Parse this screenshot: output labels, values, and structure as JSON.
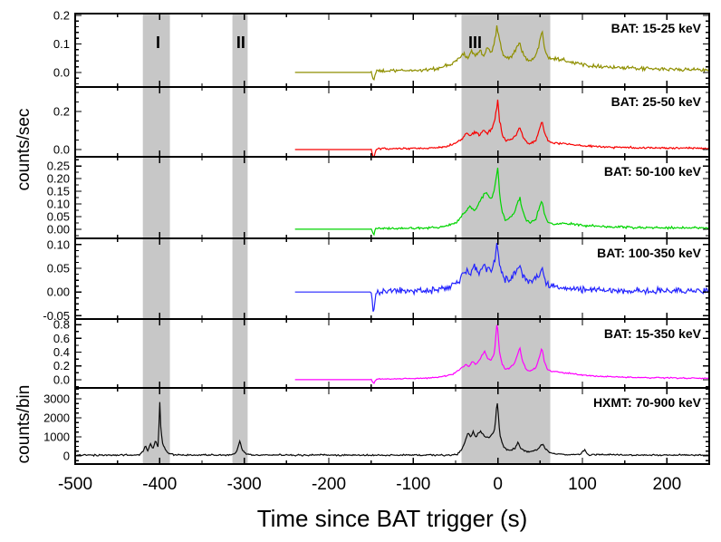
{
  "chart_data": {
    "type": "line",
    "title": "",
    "xlabel": "Time since BAT trigger (s)",
    "ylabel_top": "counts/sec",
    "ylabel_bottom": "counts/bin",
    "x_range": [
      -500,
      250
    ],
    "x_major_ticks": [
      -500,
      -400,
      -300,
      -200,
      -100,
      0,
      100,
      200
    ],
    "x_minor_step": 50,
    "band_color": "#c7c7c7",
    "interval_label_color": "#0000ee",
    "frame_color": "#000000",
    "shaded_intervals": [
      {
        "label": "I",
        "x0": -420,
        "x1": -388,
        "label_t": -402
      },
      {
        "label": "II",
        "x0": -314,
        "x1": -296,
        "label_t": -304
      },
      {
        "label": "III",
        "x0": -43,
        "x1": 62,
        "label_t": -27
      }
    ],
    "panels": [
      {
        "id": "bat-15-25",
        "legend": "BAT: 15-25 keV",
        "color": "#8f8f00",
        "ylim": [
          -0.051,
          0.206
        ],
        "yticks": [
          0.0,
          0.1,
          0.2
        ],
        "ytick_labels": [
          "0.0",
          "0.1",
          "0.2"
        ],
        "yminor_step": 0.02,
        "x_start": -240,
        "noise_start": -150,
        "noise": 0.008,
        "peak": 0.165,
        "keypoints": [
          [
            -150,
            0.004
          ],
          [
            -147,
            -0.028
          ],
          [
            -144,
            0.004
          ],
          [
            -120,
            0.006
          ],
          [
            -90,
            0.008
          ],
          [
            -70,
            0.014
          ],
          [
            -55,
            0.028
          ],
          [
            -46,
            0.05
          ],
          [
            -40,
            0.065
          ],
          [
            -36,
            0.05
          ],
          [
            -31,
            0.075
          ],
          [
            -27,
            0.055
          ],
          [
            -22,
            0.08
          ],
          [
            -17,
            0.06
          ],
          [
            -12,
            0.085
          ],
          [
            -8,
            0.07
          ],
          [
            -4,
            0.1
          ],
          [
            -1,
            0.165
          ],
          [
            2,
            0.11
          ],
          [
            5,
            0.07
          ],
          [
            9,
            0.05
          ],
          [
            14,
            0.055
          ],
          [
            19,
            0.07
          ],
          [
            23,
            0.09
          ],
          [
            26,
            0.105
          ],
          [
            29,
            0.07
          ],
          [
            33,
            0.05
          ],
          [
            38,
            0.04
          ],
          [
            44,
            0.05
          ],
          [
            49,
            0.1
          ],
          [
            52,
            0.155
          ],
          [
            55,
            0.095
          ],
          [
            59,
            0.055
          ],
          [
            64,
            0.05
          ],
          [
            72,
            0.048
          ],
          [
            82,
            0.042
          ],
          [
            93,
            0.032
          ],
          [
            106,
            0.026
          ],
          [
            126,
            0.02
          ],
          [
            152,
            0.015
          ],
          [
            186,
            0.012
          ],
          [
            220,
            0.01
          ],
          [
            250,
            0.009
          ]
        ]
      },
      {
        "id": "bat-25-50",
        "legend": "BAT: 25-50 keV",
        "color": "#f80000",
        "ylim": [
          -0.038,
          0.328
        ],
        "yticks": [
          0.0,
          0.2
        ],
        "ytick_labels": [
          "0.0",
          "0.2"
        ],
        "yminor_step": 0.05,
        "x_start": -240,
        "noise_start": -150,
        "noise": 0.0075,
        "peak": 0.26,
        "keypoints": [
          [
            -150,
            0.003
          ],
          [
            -147,
            -0.05
          ],
          [
            -144,
            0.003
          ],
          [
            -120,
            0.004
          ],
          [
            -90,
            0.006
          ],
          [
            -65,
            0.012
          ],
          [
            -50,
            0.03
          ],
          [
            -42,
            0.06
          ],
          [
            -37,
            0.09
          ],
          [
            -32,
            0.07
          ],
          [
            -27,
            0.095
          ],
          [
            -22,
            0.075
          ],
          [
            -17,
            0.1
          ],
          [
            -12,
            0.085
          ],
          [
            -7,
            0.11
          ],
          [
            -3,
            0.17
          ],
          [
            0,
            0.26
          ],
          [
            2,
            0.15
          ],
          [
            5,
            0.08
          ],
          [
            9,
            0.045
          ],
          [
            14,
            0.05
          ],
          [
            19,
            0.065
          ],
          [
            23,
            0.09
          ],
          [
            26,
            0.115
          ],
          [
            29,
            0.075
          ],
          [
            33,
            0.04
          ],
          [
            38,
            0.03
          ],
          [
            45,
            0.05
          ],
          [
            49,
            0.1
          ],
          [
            52,
            0.155
          ],
          [
            55,
            0.09
          ],
          [
            59,
            0.045
          ],
          [
            65,
            0.035
          ],
          [
            73,
            0.032
          ],
          [
            86,
            0.028
          ],
          [
            101,
            0.02
          ],
          [
            126,
            0.014
          ],
          [
            160,
            0.01
          ],
          [
            200,
            0.008
          ],
          [
            250,
            0.006
          ]
        ]
      },
      {
        "id": "bat-50-100",
        "legend": "BAT: 50-100 keV",
        "color": "#00d400",
        "ylim": [
          -0.036,
          0.286
        ],
        "yticks": [
          0.0,
          0.05,
          0.1,
          0.15,
          0.2,
          0.25
        ],
        "ytick_labels": [
          "0.00",
          "0.05",
          "0.10",
          "0.15",
          "0.20",
          "0.25"
        ],
        "yminor_step": 0.025,
        "x_start": -240,
        "noise_start": -150,
        "noise": 0.0065,
        "peak": 0.243,
        "keypoints": [
          [
            -150,
            0.002
          ],
          [
            -147,
            -0.02
          ],
          [
            -144,
            0.002
          ],
          [
            -110,
            0.004
          ],
          [
            -80,
            0.006
          ],
          [
            -60,
            0.012
          ],
          [
            -50,
            0.025
          ],
          [
            -43,
            0.05
          ],
          [
            -38,
            0.075
          ],
          [
            -33,
            0.09
          ],
          [
            -28,
            0.07
          ],
          [
            -23,
            0.1
          ],
          [
            -18,
            0.13
          ],
          [
            -14,
            0.155
          ],
          [
            -10,
            0.12
          ],
          [
            -6,
            0.13
          ],
          [
            -2,
            0.2
          ],
          [
            0,
            0.243
          ],
          [
            2,
            0.14
          ],
          [
            5,
            0.07
          ],
          [
            9,
            0.035
          ],
          [
            14,
            0.045
          ],
          [
            19,
            0.06
          ],
          [
            23,
            0.1
          ],
          [
            26,
            0.13
          ],
          [
            29,
            0.075
          ],
          [
            33,
            0.035
          ],
          [
            38,
            0.025
          ],
          [
            45,
            0.04
          ],
          [
            49,
            0.085
          ],
          [
            52,
            0.115
          ],
          [
            55,
            0.06
          ],
          [
            59,
            0.025
          ],
          [
            66,
            0.02
          ],
          [
            76,
            0.025
          ],
          [
            91,
            0.018
          ],
          [
            111,
            0.012
          ],
          [
            141,
            0.008
          ],
          [
            181,
            0.006
          ],
          [
            250,
            0.005
          ]
        ]
      },
      {
        "id": "bat-100-350",
        "legend": "BAT: 100-350 keV",
        "color": "#2424ff",
        "ylim": [
          -0.057,
          0.113
        ],
        "yticks": [
          -0.05,
          0.0,
          0.05,
          0.1
        ],
        "ytick_labels": [
          "-0.05",
          "0.00",
          "0.05",
          "0.10"
        ],
        "yminor_step": 0.0125,
        "x_start": -240,
        "noise_start": -150,
        "noise": 0.0095,
        "peak": 0.1,
        "keypoints": [
          [
            -150,
            0.001
          ],
          [
            -147,
            -0.042
          ],
          [
            -144,
            0.001
          ],
          [
            -110,
            0.002
          ],
          [
            -80,
            0.004
          ],
          [
            -60,
            0.008
          ],
          [
            -50,
            0.015
          ],
          [
            -43,
            0.03
          ],
          [
            -38,
            0.045
          ],
          [
            -33,
            0.035
          ],
          [
            -28,
            0.05
          ],
          [
            -23,
            0.04
          ],
          [
            -18,
            0.055
          ],
          [
            -13,
            0.045
          ],
          [
            -8,
            0.05
          ],
          [
            -4,
            0.06
          ],
          [
            -1,
            0.1
          ],
          [
            2,
            0.055
          ],
          [
            5,
            0.035
          ],
          [
            9,
            0.025
          ],
          [
            14,
            0.03
          ],
          [
            19,
            0.035
          ],
          [
            23,
            0.045
          ],
          [
            26,
            0.05
          ],
          [
            30,
            0.035
          ],
          [
            34,
            0.025
          ],
          [
            41,
            0.022
          ],
          [
            46,
            0.03
          ],
          [
            50,
            0.04
          ],
          [
            52,
            0.045
          ],
          [
            55,
            0.028
          ],
          [
            61,
            0.015
          ],
          [
            71,
            0.01
          ],
          [
            86,
            0.006
          ],
          [
            111,
            0.004
          ],
          [
            151,
            0.003
          ],
          [
            250,
            0.002
          ]
        ]
      },
      {
        "id": "bat-15-350",
        "legend": "BAT: 15-350 keV",
        "color": "#ff00ff",
        "ylim": [
          -0.12,
          0.88
        ],
        "yticks": [
          0.0,
          0.2,
          0.4,
          0.6,
          0.8
        ],
        "ytick_labels": [
          "0.0",
          "0.2",
          "0.4",
          "0.6",
          "0.8"
        ],
        "yminor_step": 0.1,
        "x_start": -240,
        "noise_start": -150,
        "noise": 0.013,
        "peak": 0.84,
        "keypoints": [
          [
            -150,
            0.008
          ],
          [
            -147,
            -0.06
          ],
          [
            -144,
            0.008
          ],
          [
            -120,
            0.012
          ],
          [
            -90,
            0.02
          ],
          [
            -70,
            0.035
          ],
          [
            -55,
            0.07
          ],
          [
            -47,
            0.13
          ],
          [
            -42,
            0.18
          ],
          [
            -38,
            0.22
          ],
          [
            -34,
            0.19
          ],
          [
            -30,
            0.26
          ],
          [
            -26,
            0.22
          ],
          [
            -21,
            0.3
          ],
          [
            -16,
            0.42
          ],
          [
            -12,
            0.3
          ],
          [
            -8,
            0.28
          ],
          [
            -4,
            0.4
          ],
          [
            -1,
            0.84
          ],
          [
            2,
            0.4
          ],
          [
            5,
            0.22
          ],
          [
            9,
            0.15
          ],
          [
            14,
            0.17
          ],
          [
            19,
            0.22
          ],
          [
            23,
            0.35
          ],
          [
            26,
            0.47
          ],
          [
            29,
            0.28
          ],
          [
            33,
            0.15
          ],
          [
            38,
            0.12
          ],
          [
            45,
            0.17
          ],
          [
            49,
            0.32
          ],
          [
            52,
            0.47
          ],
          [
            55,
            0.26
          ],
          [
            59,
            0.14
          ],
          [
            65,
            0.12
          ],
          [
            73,
            0.11
          ],
          [
            86,
            0.09
          ],
          [
            101,
            0.065
          ],
          [
            126,
            0.045
          ],
          [
            161,
            0.032
          ],
          [
            200,
            0.025
          ],
          [
            250,
            0.02
          ]
        ]
      },
      {
        "id": "hxmt-70-900",
        "legend": "HXMT: 70-900 keV",
        "color": "#0a0a0a",
        "ylim": [
          -430,
          3570
        ],
        "yticks": [
          0,
          1000,
          2000,
          3000
        ],
        "ytick_labels": [
          "0",
          "1000",
          "2000",
          "3000"
        ],
        "yminor_step": 250,
        "x_start": -500,
        "noise_start": -600,
        "noise": 58,
        "peak": 3080,
        "keypoints": [
          [
            -500,
            40
          ],
          [
            -430,
            40
          ],
          [
            -424,
            60
          ],
          [
            -420,
            240
          ],
          [
            -417,
            520
          ],
          [
            -414,
            260
          ],
          [
            -411,
            660
          ],
          [
            -408,
            340
          ],
          [
            -405,
            820
          ],
          [
            -402,
            480
          ],
          [
            -401,
            1500
          ],
          [
            -400,
            3080
          ],
          [
            -399,
            1600
          ],
          [
            -397,
            700
          ],
          [
            -394,
            350
          ],
          [
            -390,
            160
          ],
          [
            -384,
            60
          ],
          [
            -360,
            40
          ],
          [
            -316,
            45
          ],
          [
            -311,
            120
          ],
          [
            -308,
            350
          ],
          [
            -305,
            780
          ],
          [
            -303,
            400
          ],
          [
            -300,
            180
          ],
          [
            -296,
            80
          ],
          [
            -289,
            45
          ],
          [
            -200,
            40
          ],
          [
            -120,
            40
          ],
          [
            -60,
            45
          ],
          [
            -51,
            60
          ],
          [
            -47,
            120
          ],
          [
            -43,
            300
          ],
          [
            -39,
            700
          ],
          [
            -35,
            1250
          ],
          [
            -32,
            1000
          ],
          [
            -29,
            1300
          ],
          [
            -26,
            950
          ],
          [
            -23,
            1200
          ],
          [
            -20,
            1300
          ],
          [
            -17,
            1100
          ],
          [
            -14,
            1000
          ],
          [
            -10,
            950
          ],
          [
            -7,
            1100
          ],
          [
            -4,
            1350
          ],
          [
            -2.5,
            2000
          ],
          [
            -1,
            2950
          ],
          [
            0.5,
            2200
          ],
          [
            2,
            1200
          ],
          [
            4,
            800
          ],
          [
            7,
            480
          ],
          [
            11,
            330
          ],
          [
            15,
            300
          ],
          [
            20,
            380
          ],
          [
            24,
            700
          ],
          [
            27,
            420
          ],
          [
            32,
            240
          ],
          [
            38,
            220
          ],
          [
            45,
            300
          ],
          [
            49,
            420
          ],
          [
            53,
            640
          ],
          [
            56,
            380
          ],
          [
            61,
            180
          ],
          [
            68,
            120
          ],
          [
            78,
            80
          ],
          [
            96,
            60
          ],
          [
            103,
            330
          ],
          [
            106,
            70
          ],
          [
            150,
            45
          ],
          [
            200,
            42
          ],
          [
            250,
            40
          ]
        ]
      }
    ]
  }
}
